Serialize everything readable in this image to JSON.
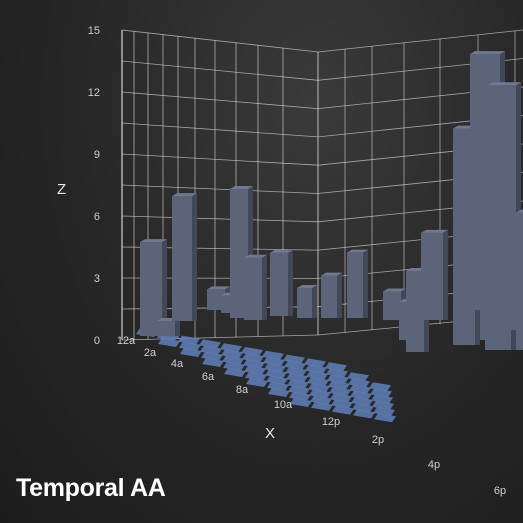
{
  "overlay": {
    "label": "Temporal AA"
  },
  "colors": {
    "bar": "#5b6478",
    "bar_top": "#6f7890",
    "bar_dark": "#414858",
    "floor_tile": "#5f7fb8",
    "grid": "#d8d8d8"
  },
  "chart_data": {
    "type": "bar3d",
    "title": "",
    "xlabel": "X",
    "ylabel": "",
    "zlabel": "Z",
    "z_ticks": [
      "0",
      "3",
      "6",
      "9",
      "12",
      "15"
    ],
    "zlim": [
      0,
      15
    ],
    "x_ticks": [
      "12a",
      "2a",
      "4a",
      "6a",
      "8a",
      "10a",
      "12p",
      "2p",
      "4p",
      "6p"
    ],
    "grid": true,
    "bars": [
      {
        "x": "12a",
        "z": 5.0
      },
      {
        "x": "12a",
        "z": 0.8
      },
      {
        "x": "2a",
        "z": 7.0
      },
      {
        "x": "4a",
        "z": 1.2
      },
      {
        "x": "4a",
        "z": 1.0
      },
      {
        "x": "6a",
        "z": 7.3
      },
      {
        "x": "6a",
        "z": 3.5
      },
      {
        "x": "8a",
        "z": 3.6
      },
      {
        "x": "8a",
        "z": 1.7
      },
      {
        "x": "10a",
        "z": 2.4
      },
      {
        "x": "10a",
        "z": 3.7
      },
      {
        "x": "12p",
        "z": 1.6
      },
      {
        "x": "12p",
        "z": 2.0
      },
      {
        "x": "2p",
        "z": 4.1
      },
      {
        "x": "2p",
        "z": 4.9
      },
      {
        "x": "4p",
        "z": 8.5
      },
      {
        "x": "4p",
        "z": 11.2
      },
      {
        "x": "4p",
        "z": 4.0
      },
      {
        "x": "6p",
        "z": 14.9
      },
      {
        "x": "6p",
        "z": 13.3
      },
      {
        "x": "6p",
        "z": 7.0
      }
    ]
  }
}
